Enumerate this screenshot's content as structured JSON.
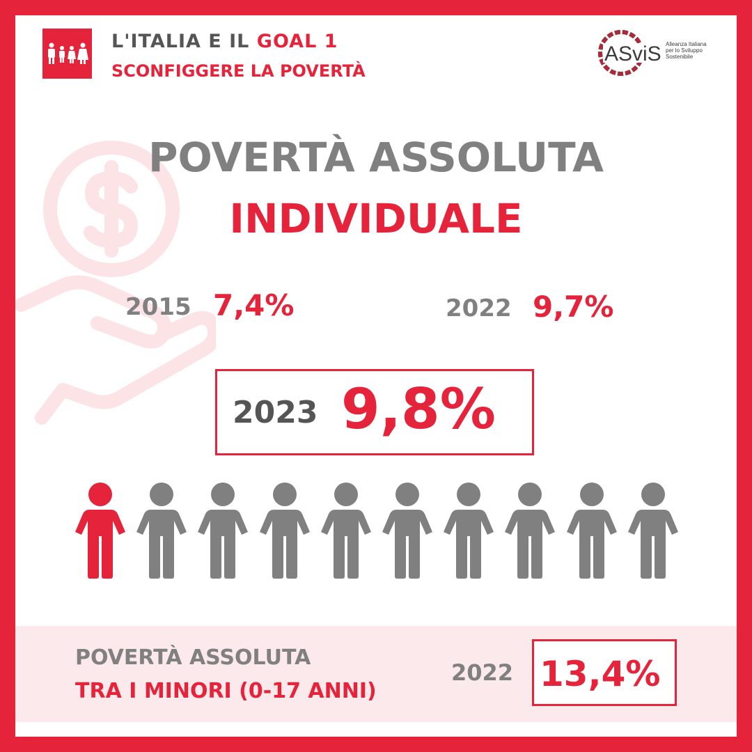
{
  "colors": {
    "accent": "#e5243b",
    "gray": "#808080",
    "dark_gray": "#555555",
    "band": "#fbe9ec"
  },
  "header": {
    "goal_badge_icon": "family-icon",
    "line1_prefix": "L'ITALIA E IL ",
    "line1_goal": "GOAL 1",
    "line2": "SCONFIGGERE LA POVERTÀ",
    "logo": {
      "wordmark": "ASviS",
      "tagline_1": "Alleanza Italiana",
      "tagline_2": "per lo Sviluppo",
      "tagline_3": "Sostenibile"
    }
  },
  "background_icon": "hand-coin-icon",
  "title": {
    "line1": "POVERTÀ ASSOLUTA",
    "line2": "INDIVIDUALE"
  },
  "stats": [
    {
      "year": "2015",
      "value": "7,4%"
    },
    {
      "year": "2022",
      "value": "9,7%"
    }
  ],
  "highlight": {
    "year": "2023",
    "value": "9,8%"
  },
  "people_chart": {
    "total": 10,
    "highlighted": 1,
    "icon": "person-icon"
  },
  "minors": {
    "line1": "POVERTÀ ASSOLUTA",
    "line2": "TRA I MINORI (0-17 ANNI)",
    "year": "2022",
    "value": "13,4%"
  }
}
